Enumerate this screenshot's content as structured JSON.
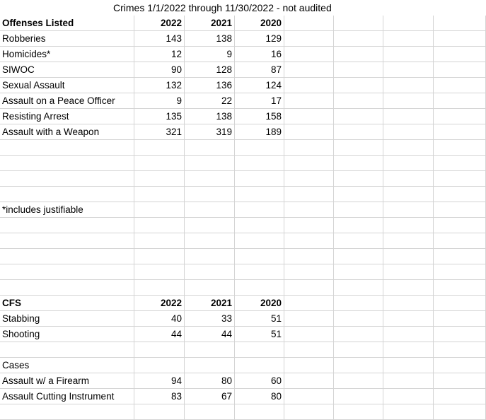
{
  "title": "Crimes 1/1/2022 through 11/30/2022 - not audited",
  "header": {
    "label": "Offenses Listed",
    "y2022": "2022",
    "y2021": "2021",
    "y2020": "2020"
  },
  "rows": [
    {
      "label": "Robberies",
      "y2022": "143",
      "y2021": "138",
      "y2020": "129"
    },
    {
      "label": "Homicides*",
      "y2022": "12",
      "y2021": "9",
      "y2020": "16"
    },
    {
      "label": "SIWOC",
      "y2022": "90",
      "y2021": "128",
      "y2020": "87"
    },
    {
      "label": "Sexual Assault",
      "y2022": "132",
      "y2021": "136",
      "y2020": "124"
    },
    {
      "label": "Assault on a Peace Officer",
      "y2022": "9",
      "y2021": "22",
      "y2020": "17"
    },
    {
      "label": "Resisting Arrest",
      "y2022": "135",
      "y2021": "138",
      "y2020": "158"
    },
    {
      "label": "Assault with a Weapon",
      "y2022": "321",
      "y2021": "319",
      "y2020": "189"
    }
  ],
  "footnote": "*includes justifiable",
  "cfs_header": {
    "label": "CFS",
    "y2022": "2022",
    "y2021": "2021",
    "y2020": "2020"
  },
  "cfs_rows": [
    {
      "label": "Stabbing",
      "y2022": "40",
      "y2021": "33",
      "y2020": "51"
    },
    {
      "label": "Shooting",
      "y2022": "44",
      "y2021": "44",
      "y2020": "51"
    }
  ],
  "cases_label": "Cases",
  "cases_rows": [
    {
      "label": "Assault w/ a Firearm",
      "y2022": "94",
      "y2021": "80",
      "y2020": "60"
    },
    {
      "label": "Assault Cutting Instrument",
      "y2022": "83",
      "y2021": "67",
      "y2020": "80"
    }
  ]
}
